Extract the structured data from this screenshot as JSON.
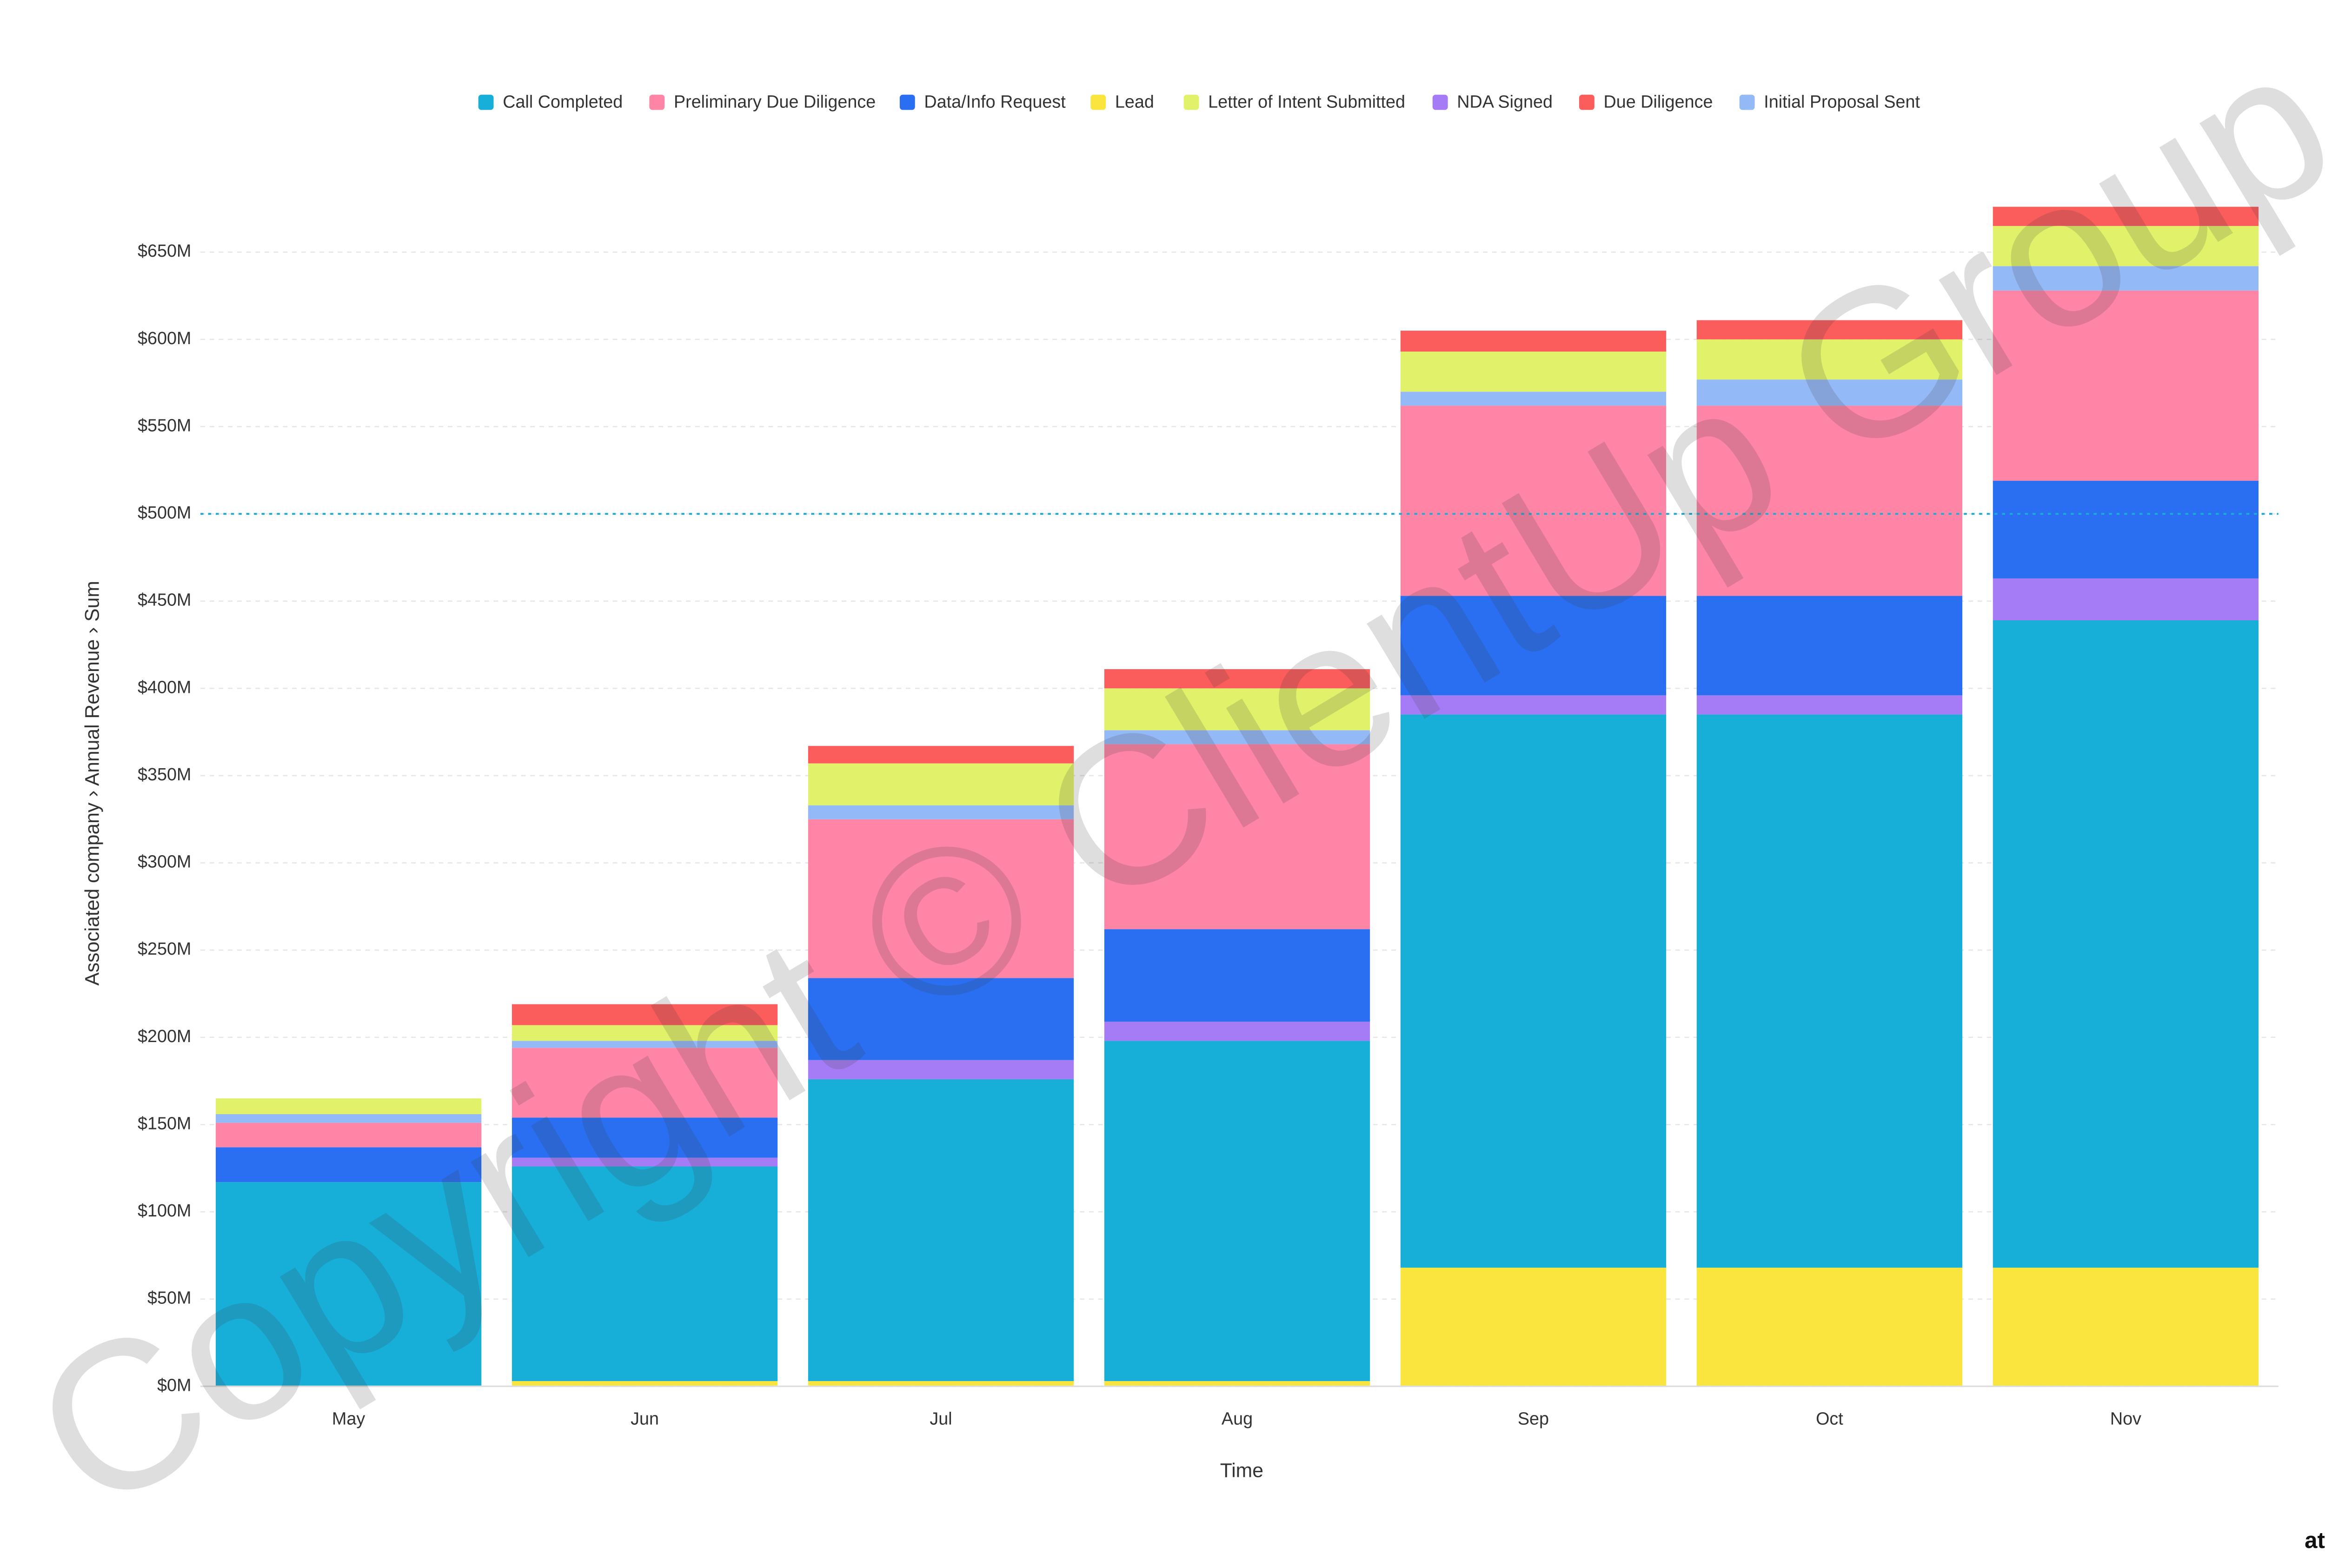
{
  "chart_data": {
    "type": "stacked-bar",
    "x_label": "Time",
    "y_label": "Associated company › Annual Revenue › Sum",
    "categories": [
      "May",
      "Jun",
      "Jul",
      "Aug",
      "Sep",
      "Oct",
      "Nov"
    ],
    "series": [
      {
        "name": "Lead",
        "color": "#fae53f",
        "values": [
          0,
          3,
          3,
          3,
          68,
          68,
          68
        ]
      },
      {
        "name": "Call Completed",
        "color": "#17aed8",
        "values": [
          117,
          123,
          173,
          195,
          317,
          317,
          371
        ]
      },
      {
        "name": "NDA Signed",
        "color": "#a57cf5",
        "values": [
          0,
          5,
          11,
          11,
          11,
          11,
          24
        ]
      },
      {
        "name": "Data/Info Request",
        "color": "#2a6ff2",
        "values": [
          20,
          23,
          47,
          53,
          57,
          57,
          56
        ]
      },
      {
        "name": "Preliminary Due Diligence",
        "color": "#fe85a6",
        "values": [
          14,
          40,
          91,
          106,
          109,
          109,
          109
        ]
      },
      {
        "name": "Initial Proposal Sent",
        "color": "#94b9f7",
        "values": [
          5,
          4,
          8,
          8,
          8,
          15,
          14
        ]
      },
      {
        "name": "Letter of Intent Submitted",
        "color": "#e1f26a",
        "values": [
          9,
          9,
          24,
          24,
          23,
          23,
          23
        ]
      },
      {
        "name": "Due Diligence",
        "color": "#fb5c5c",
        "values": [
          0,
          12,
          10,
          11,
          12,
          11,
          11
        ]
      }
    ],
    "legend_order": [
      1,
      4,
      3,
      0,
      6,
      2,
      7,
      5
    ],
    "ylim": [
      0,
      700
    ],
    "yticks": [
      {
        "value": 0,
        "label": "$0M"
      },
      {
        "value": 50,
        "label": "$50M"
      },
      {
        "value": 100,
        "label": "$100M"
      },
      {
        "value": 150,
        "label": "$150M"
      },
      {
        "value": 200,
        "label": "$200M"
      },
      {
        "value": 250,
        "label": "$250M"
      },
      {
        "value": 300,
        "label": "$300M"
      },
      {
        "value": 350,
        "label": "$350M"
      },
      {
        "value": 400,
        "label": "$400M"
      },
      {
        "value": 450,
        "label": "$450M"
      },
      {
        "value": 500,
        "label": "$500M"
      },
      {
        "value": 550,
        "label": "$550M"
      },
      {
        "value": 600,
        "label": "$600M"
      },
      {
        "value": 650,
        "label": "$650M"
      }
    ],
    "grid": true,
    "reference_line": {
      "value": 500,
      "color": "#17aed8"
    },
    "watermark": "Copyright © ClientUp Group",
    "brand": "attio"
  }
}
